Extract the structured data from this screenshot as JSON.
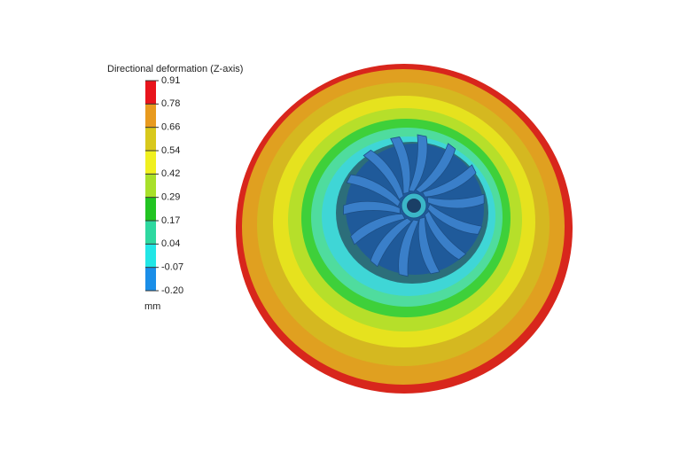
{
  "legend": {
    "title": "Directional deformation (Z-axis)",
    "labels": [
      "0.91",
      "0.78",
      "0.66",
      "0.54",
      "0.42",
      "0.29",
      "0.17",
      "0.04",
      "-0.07",
      "-0.20"
    ],
    "unit": "mm"
  }
}
